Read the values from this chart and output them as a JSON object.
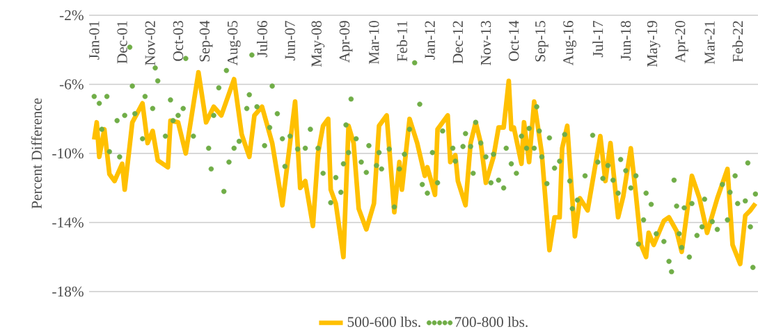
{
  "chart_data": {
    "type": "line",
    "ylabel": "Percent Difference",
    "xlim": [
      "2000-11",
      "2022-10"
    ],
    "ylim": [
      -18,
      -2
    ],
    "yticks": [
      {
        "value": -2,
        "label": "-2%"
      },
      {
        "value": -6,
        "label": "-6%"
      },
      {
        "value": -10,
        "label": "-10%"
      },
      {
        "value": -14,
        "label": "-14%"
      },
      {
        "value": -18,
        "label": "-18%"
      }
    ],
    "xticks": [
      {
        "value": "2001-01",
        "label": "Jan-01"
      },
      {
        "value": "2001-12",
        "label": "Dec-01"
      },
      {
        "value": "2002-11",
        "label": "Nov-02"
      },
      {
        "value": "2003-10",
        "label": "Oct-03"
      },
      {
        "value": "2004-09",
        "label": "Sep-04"
      },
      {
        "value": "2005-08",
        "label": "Aug-05"
      },
      {
        "value": "2006-07",
        "label": "Jul-06"
      },
      {
        "value": "2007-06",
        "label": "Jun-07"
      },
      {
        "value": "2008-05",
        "label": "May-08"
      },
      {
        "value": "2009-04",
        "label": "Apr-09"
      },
      {
        "value": "2010-03",
        "label": "Mar-10"
      },
      {
        "value": "2011-02",
        "label": "Feb-11"
      },
      {
        "value": "2012-01",
        "label": "Jan-12"
      },
      {
        "value": "2012-12",
        "label": "Dec-12"
      },
      {
        "value": "2013-11",
        "label": "Nov-13"
      },
      {
        "value": "2014-10",
        "label": "Oct-14"
      },
      {
        "value": "2015-09",
        "label": "Sep-15"
      },
      {
        "value": "2016-08",
        "label": "Aug-16"
      },
      {
        "value": "2017-07",
        "label": "Jul-17"
      },
      {
        "value": "2018-06",
        "label": "Jun-18"
      },
      {
        "value": "2019-05",
        "label": "May-19"
      },
      {
        "value": "2020-04",
        "label": "Apr-20"
      },
      {
        "value": "2021-03",
        "label": "Mar-21"
      },
      {
        "value": "2022-02",
        "label": "Feb-22"
      }
    ],
    "grid": "y",
    "legend": "bottom",
    "series": [
      {
        "name": "500-600 lbs.",
        "line_style": "solid",
        "color": "#ffc000",
        "x": [
          "2001-01",
          "2001-02",
          "2001-03",
          "2001-05",
          "2001-07",
          "2001-09",
          "2001-12",
          "2002-01",
          "2002-04",
          "2002-08",
          "2002-10",
          "2002-12",
          "2003-02",
          "2003-06",
          "2003-07",
          "2003-10",
          "2004-01",
          "2004-06",
          "2004-09",
          "2004-12",
          "2005-03",
          "2005-08",
          "2005-11",
          "2006-02",
          "2006-04",
          "2006-07",
          "2006-11",
          "2007-03",
          "2007-08",
          "2007-10",
          "2007-12",
          "2008-03",
          "2008-05",
          "2008-07",
          "2008-09",
          "2008-10",
          "2008-12",
          "2009-03",
          "2009-05",
          "2009-07",
          "2009-09",
          "2009-12",
          "2010-03",
          "2010-05",
          "2010-08",
          "2010-11",
          "2011-01",
          "2011-02",
          "2011-05",
          "2011-08",
          "2011-11",
          "2011-12",
          "2012-03",
          "2012-04",
          "2012-08",
          "2012-09",
          "2012-11",
          "2012-12",
          "2013-03",
          "2013-05",
          "2013-07",
          "2013-09",
          "2013-11",
          "2014-02",
          "2014-04",
          "2014-06",
          "2014-08",
          "2014-09",
          "2014-10",
          "2015-01",
          "2015-02",
          "2015-04",
          "2015-06",
          "2015-09",
          "2015-12",
          "2016-02",
          "2016-04",
          "2016-05",
          "2016-07",
          "2016-10",
          "2016-12",
          "2017-03",
          "2017-08",
          "2017-10",
          "2017-12",
          "2018-03",
          "2018-05",
          "2018-08",
          "2018-10",
          "2018-12",
          "2019-02",
          "2019-03",
          "2019-05",
          "2019-09",
          "2019-11",
          "2020-02",
          "2020-04",
          "2020-08",
          "2020-11",
          "2021-02",
          "2021-06",
          "2021-10",
          "2021-12",
          "2022-03",
          "2022-05",
          "2022-07",
          "2022-09"
        ],
        "values": [
          -9.2,
          -8.2,
          -10.2,
          -8.6,
          -11.2,
          -11.6,
          -10.6,
          -12.1,
          -8.2,
          -7.1,
          -9.4,
          -8.7,
          -10.4,
          -10.8,
          -8.1,
          -8.2,
          -10.0,
          -5.3,
          -8.2,
          -7.3,
          -7.8,
          -5.7,
          -8.9,
          -10.2,
          -7.8,
          -7.3,
          -9.4,
          -13.0,
          -7.0,
          -12.0,
          -11.6,
          -14.2,
          -10.0,
          -8.4,
          -8.0,
          -12.1,
          -12.9,
          -16.0,
          -8.4,
          -9.4,
          -13.2,
          -14.4,
          -12.9,
          -8.4,
          -7.8,
          -13.4,
          -10.5,
          -12.1,
          -8.0,
          -9.4,
          -11.3,
          -10.8,
          -12.4,
          -8.6,
          -7.8,
          -10.5,
          -10.1,
          -11.6,
          -13.0,
          -9.4,
          -8.2,
          -9.4,
          -11.7,
          -10.2,
          -8.5,
          -8.5,
          -5.8,
          -8.6,
          -8.5,
          -10.6,
          -8.2,
          -10.5,
          -7.0,
          -10.0,
          -15.6,
          -13.7,
          -13.7,
          -9.7,
          -8.4,
          -14.8,
          -12.6,
          -13.3,
          -9.0,
          -11.6,
          -9.4,
          -13.7,
          -12.5,
          -9.7,
          -12.4,
          -15.3,
          -16.0,
          -14.6,
          -15.3,
          -13.9,
          -13.7,
          -14.5,
          -15.7,
          -11.3,
          -12.6,
          -14.6,
          -12.6,
          -10.9,
          -15.3,
          -16.4,
          -13.6,
          -13.3,
          -12.9
        ]
      },
      {
        "name": "700-800 lbs.",
        "type": "scatter",
        "marker": "circle",
        "color": "#70ad47",
        "x": [
          "2001-01",
          "2001-03",
          "2001-04",
          "2001-06",
          "2001-07",
          "2001-10",
          "2001-11",
          "2002-01",
          "2002-03",
          "2002-04",
          "2002-05",
          "2002-08",
          "2002-09",
          "2002-12",
          "2003-01",
          "2003-02",
          "2003-05",
          "2003-07",
          "2003-08",
          "2003-10",
          "2003-12",
          "2004-01",
          "2004-04",
          "2004-10",
          "2004-11",
          "2004-12",
          "2005-02",
          "2005-04",
          "2005-05",
          "2005-06",
          "2005-08",
          "2005-10",
          "2006-01",
          "2006-02",
          "2006-03",
          "2006-05",
          "2006-08",
          "2006-10",
          "2006-11",
          "2007-01",
          "2007-03",
          "2007-04",
          "2007-06",
          "2007-09",
          "2007-12",
          "2008-02",
          "2008-05",
          "2008-07",
          "2008-10",
          "2008-12",
          "2009-02",
          "2009-03",
          "2009-04",
          "2009-05",
          "2009-06",
          "2009-08",
          "2009-10",
          "2009-12",
          "2010-01",
          "2010-04",
          "2010-05",
          "2010-06",
          "2010-09",
          "2010-11",
          "2011-01",
          "2011-03",
          "2011-05",
          "2011-07",
          "2011-09",
          "2011-10",
          "2011-12",
          "2012-02",
          "2012-04",
          "2012-06",
          "2012-10",
          "2012-11",
          "2013-02",
          "2013-03",
          "2013-05",
          "2013-06",
          "2013-07",
          "2013-09",
          "2013-11",
          "2014-01",
          "2014-02",
          "2014-04",
          "2014-06",
          "2014-07",
          "2014-09",
          "2014-11",
          "2015-01",
          "2015-03",
          "2015-04",
          "2015-06",
          "2015-07",
          "2015-08",
          "2015-09",
          "2015-11",
          "2015-12",
          "2016-02",
          "2016-04",
          "2016-06",
          "2016-08",
          "2016-09",
          "2016-11",
          "2017-02",
          "2017-05",
          "2017-07",
          "2017-09",
          "2017-11",
          "2018-01",
          "2018-03",
          "2018-04",
          "2018-06",
          "2018-08",
          "2018-10",
          "2018-11",
          "2019-01",
          "2019-02",
          "2019-04",
          "2019-06",
          "2019-09",
          "2019-11",
          "2019-12",
          "2020-01",
          "2020-02",
          "2020-03",
          "2020-04",
          "2020-05",
          "2020-07",
          "2020-08",
          "2020-10",
          "2020-12",
          "2021-01",
          "2021-04",
          "2021-06",
          "2021-08",
          "2021-10",
          "2021-11",
          "2022-01",
          "2022-02",
          "2022-05",
          "2022-06",
          "2022-07",
          "2022-08",
          "2022-09"
        ],
        "values": [
          -6.7,
          -7.1,
          -8.6,
          -6.7,
          -9.9,
          -8.1,
          -10.2,
          -7.8,
          -3.85,
          -6.1,
          -7.7,
          -9.15,
          -6.7,
          -7.4,
          -5.05,
          -5.8,
          -9.0,
          -6.9,
          -8.1,
          -7.8,
          -7.4,
          -4.5,
          -9.0,
          -9.7,
          -10.9,
          -7.8,
          -6.2,
          -12.2,
          -5.2,
          -10.5,
          -9.7,
          -9.3,
          -7.4,
          -6.6,
          -4.3,
          -7.3,
          -9.55,
          -8.5,
          -6.1,
          -7.7,
          -9.15,
          -10.75,
          -9.0,
          -9.75,
          -9.7,
          -8.6,
          -9.7,
          -11.15,
          -12.85,
          -11.4,
          -12.25,
          -10.6,
          -8.35,
          -9.95,
          -6.85,
          -9.15,
          -10.5,
          -11.1,
          -9.55,
          -10.7,
          -9.95,
          -10.9,
          -9.75,
          -13.1,
          -10.9,
          -10.05,
          -8.6,
          -4.75,
          -7.15,
          -11.8,
          -12.3,
          -9.95,
          -11.7,
          -8.7,
          -9.7,
          -10.45,
          -9.6,
          -8.85,
          -9.6,
          -11.15,
          -8.2,
          -9.4,
          -10.2,
          -11.7,
          -10.05,
          -11.55,
          -12.0,
          -9.7,
          -10.6,
          -11.15,
          -9.0,
          -9.7,
          -8.55,
          -9.7,
          -7.3,
          -8.7,
          -10.2,
          -11.75,
          -9.1,
          -10.85,
          -10.45,
          -8.9,
          -11.6,
          -13.2,
          -12.7,
          -11.3,
          -8.95,
          -10.5,
          -11.45,
          -10.7,
          -11.55,
          -12.3,
          -10.35,
          -11.0,
          -12.0,
          -11.3,
          -15.25,
          -13.85,
          -12.3,
          -12.95,
          -14.65,
          -15.1,
          -16.25,
          -16.85,
          -11.55,
          -13.05,
          -14.65,
          -15.45,
          -13.15,
          -16.0,
          -12.9,
          -14.75,
          -14.25,
          -12.65,
          -13.95,
          -14.4,
          -11.8,
          -13.85,
          -12.25,
          -11.3,
          -12.9,
          -12.75,
          -10.55,
          -14.25,
          -16.6,
          -12.35
        ]
      }
    ]
  }
}
